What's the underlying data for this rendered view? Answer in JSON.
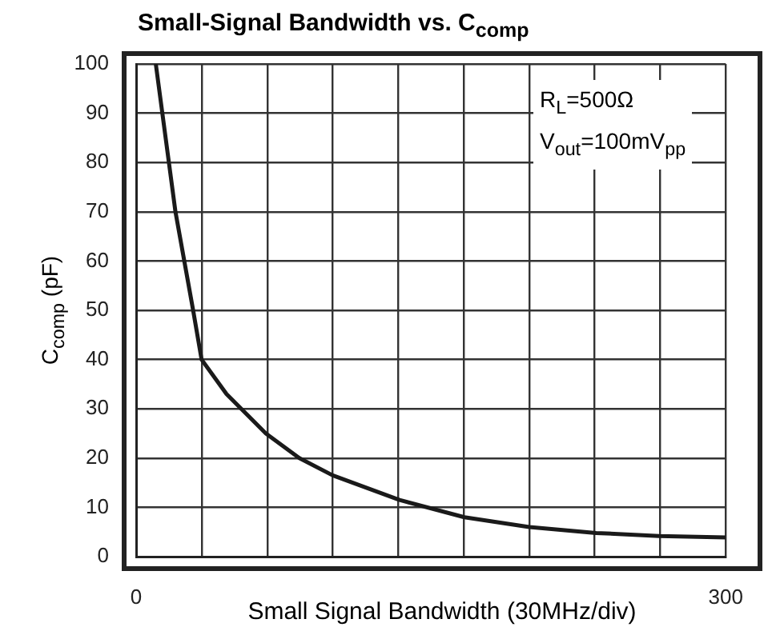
{
  "chart_data": {
    "type": "line",
    "title": "Small-Signal Bandwidth vs. C$_{comp}$",
    "xlabel": "Small Signal Bandwidth (30MHz/div)",
    "ylabel": "C$_{comp}$ (pF)",
    "annotations": [
      "R$_{L}$=500Ω",
      "V$_{out}$=100mV$_{pp}$"
    ],
    "x": [
      10,
      20,
      29,
      33.3,
      46,
      66,
      83,
      100,
      134,
      167,
      200,
      234,
      266,
      300
    ],
    "series": [
      {
        "color": "#1a1a1a",
        "values": [
          100,
          70,
          50,
          40,
          33,
          25,
          20,
          16.5,
          11.5,
          8,
          6,
          4.8,
          4.2,
          3.9
        ]
      }
    ],
    "xlim": [
      0,
      300
    ],
    "ylim": [
      0,
      100
    ],
    "xticks": [
      0,
      {
        "value": 33.3,
        "label": null
      },
      {
        "value": 66.7,
        "label": null
      },
      {
        "value": 100,
        "label": null
      },
      {
        "value": 133.3,
        "label": null
      },
      {
        "value": 166.7,
        "label": null
      },
      {
        "value": 200,
        "label": null
      },
      {
        "value": 233.3,
        "label": null
      },
      {
        "value": 266.7,
        "label": null
      },
      300
    ],
    "yticks": [
      0,
      10,
      20,
      30,
      40,
      50,
      60,
      70,
      80,
      90,
      100
    ],
    "grid": true,
    "legend": false,
    "marker": "none",
    "line_style": "solid"
  }
}
